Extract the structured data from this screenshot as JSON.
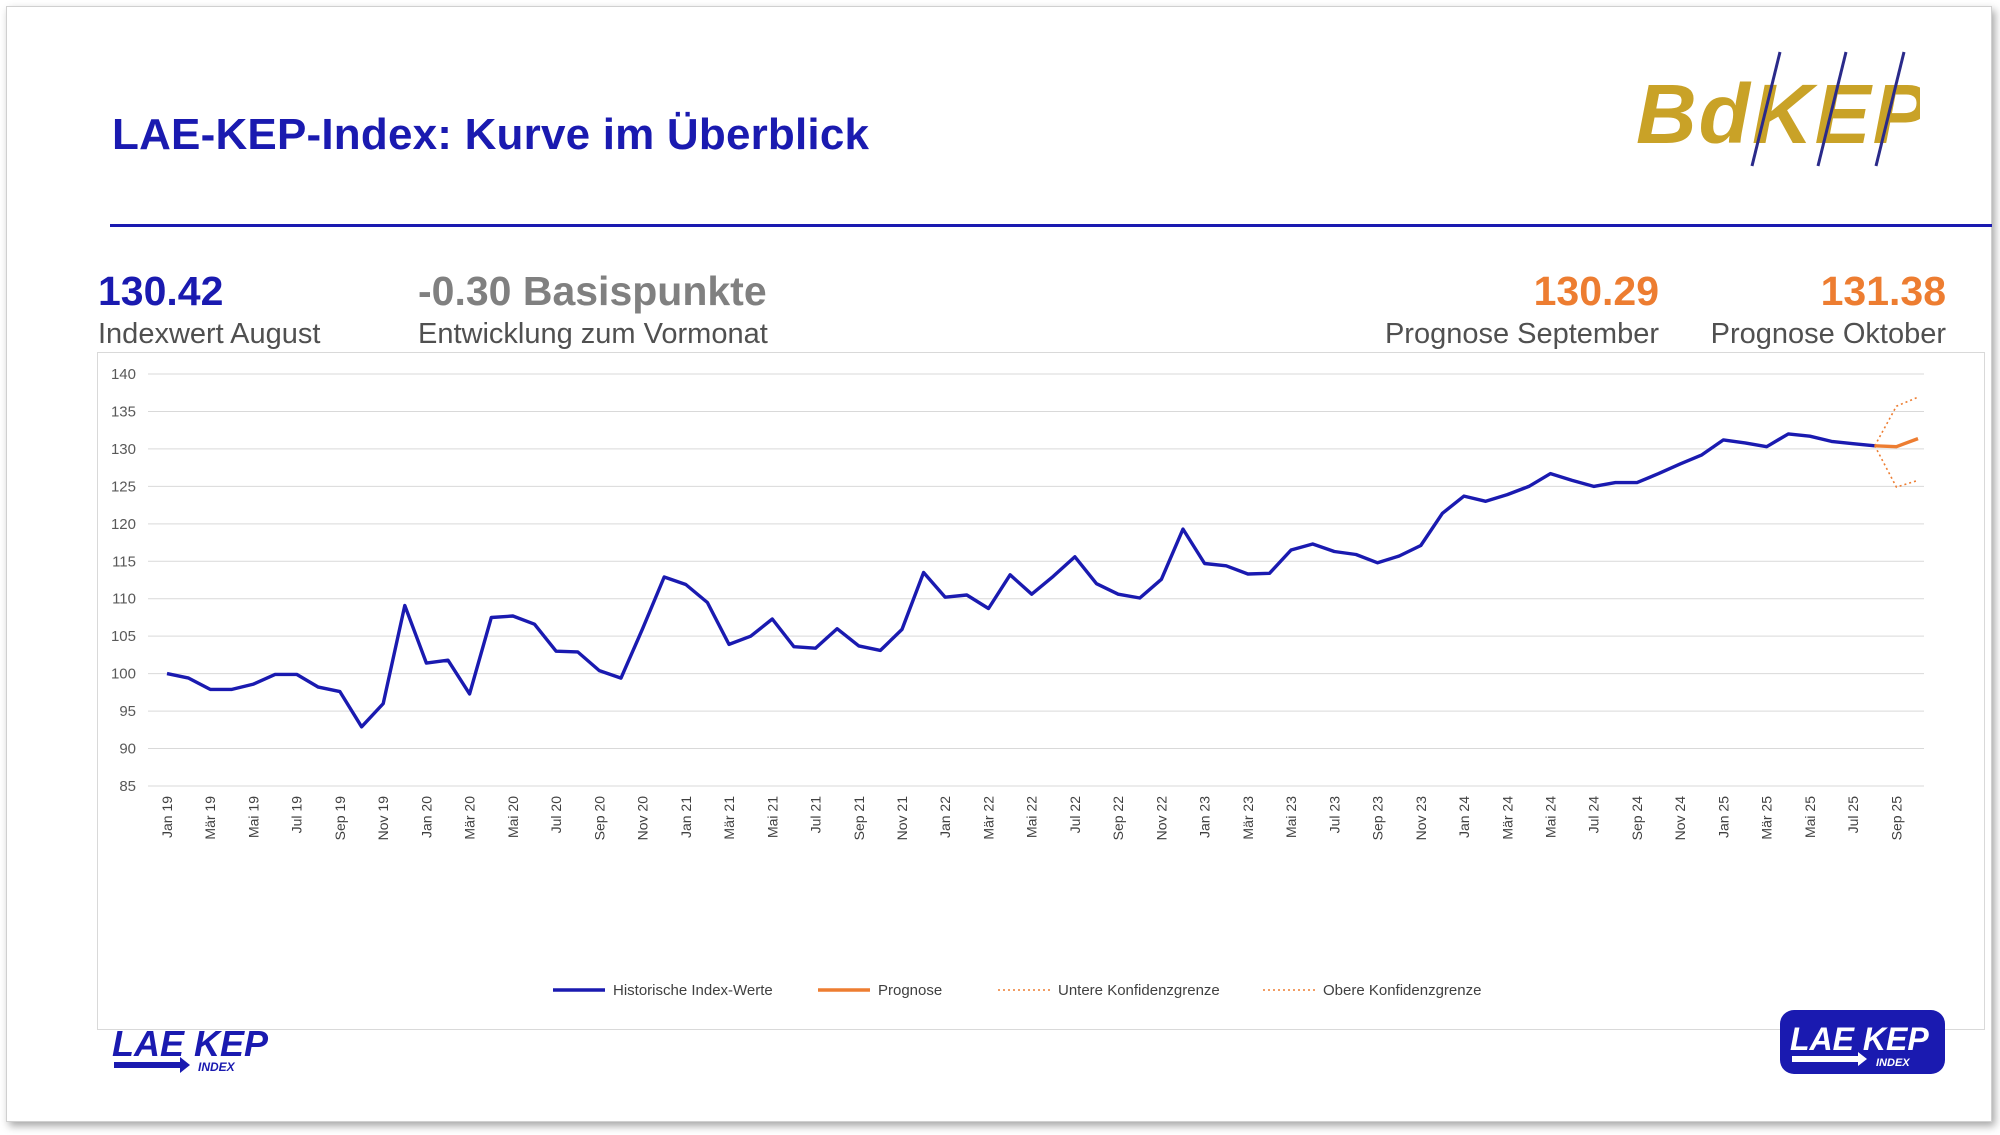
{
  "header": {
    "title": "LAE-KEP-Index: Kurve im Überblick",
    "logo_bdkep": "BdKEP",
    "logo_lae": "LAE KEP",
    "logo_lae_sub": "INDEX"
  },
  "kpis": [
    {
      "value": "130.42",
      "label": "Indexwert August",
      "color": "#1a1ab0"
    },
    {
      "value": "-0.30 Basispunkte",
      "label": "Entwicklung zum Vormonat",
      "color": "#808080"
    },
    {
      "value": "130.29",
      "label": "Prognose September",
      "color": "#ed7d31"
    },
    {
      "value": "131.38",
      "label": "Prognose Oktober",
      "color": "#ed7d31"
    }
  ],
  "colors": {
    "accent": "#1a1ab0",
    "forecast": "#ed7d31",
    "gold": "#c9a227"
  },
  "chart_data": {
    "type": "line",
    "ylim": [
      85,
      140
    ],
    "yticks": [
      85,
      90,
      95,
      100,
      105,
      110,
      115,
      120,
      125,
      130,
      135,
      140
    ],
    "grid": true,
    "legend_position": "bottom",
    "xtick_labels": [
      "Jan 19",
      "Mär 19",
      "Mai 19",
      "Jul 19",
      "Sep 19",
      "Nov 19",
      "Jan 20",
      "Mär 20",
      "Mai 20",
      "Jul 20",
      "Sep 20",
      "Nov 20",
      "Jan 21",
      "Mär 21",
      "Mai 21",
      "Jul 21",
      "Sep 21",
      "Nov 21",
      "Jan 22",
      "Mär 22",
      "Mai 22",
      "Jul 22",
      "Sep 22",
      "Nov 22",
      "Jan 23",
      "Mär 23",
      "Mai 23",
      "Jul 23",
      "Sep 23",
      "Nov 23",
      "Jan 24",
      "Mär 24",
      "Mai 24",
      "Jul 24",
      "Sep 24",
      "Nov 24",
      "Jan 25",
      "Mär 25",
      "Mai 25",
      "Jul 25",
      "Sep 25"
    ],
    "x_start": "Jan 19",
    "series": [
      {
        "name": "Historische Index-Werte",
        "color": "#1a1ab0",
        "style": "solid",
        "values": [
          100.0,
          99.4,
          97.9,
          97.9,
          98.6,
          99.9,
          99.9,
          98.2,
          97.6,
          92.9,
          96.0,
          109.1,
          101.4,
          101.8,
          97.3,
          107.5,
          107.7,
          106.6,
          103.0,
          102.9,
          100.4,
          99.4,
          106.0,
          112.9,
          111.9,
          109.5,
          103.9,
          105.0,
          107.3,
          103.6,
          103.4,
          106.0,
          103.7,
          103.1,
          105.9,
          113.5,
          110.2,
          110.5,
          108.7,
          113.2,
          110.6,
          113.0,
          115.6,
          112.0,
          110.6,
          110.1,
          112.6,
          119.3,
          114.7,
          114.4,
          113.3,
          113.4,
          116.5,
          117.3,
          116.3,
          115.9,
          114.8,
          115.7,
          117.1,
          121.4,
          123.7,
          123.0,
          123.9,
          125.0,
          126.7,
          125.8,
          125.0,
          125.5,
          125.5,
          126.7,
          128.0,
          129.2,
          131.2,
          130.8,
          130.3,
          132.0,
          131.7,
          131.0,
          130.7,
          130.42
        ],
        "start_index": 0
      },
      {
        "name": "Prognose",
        "color": "#ed7d31",
        "style": "solid",
        "values": [
          130.42,
          130.29,
          131.38
        ],
        "start_index": 79
      },
      {
        "name": "Untere Konfidenzgrenze",
        "color": "#ed7d31",
        "style": "dotted",
        "values": [
          130.42,
          124.9,
          125.8
        ],
        "start_index": 79
      },
      {
        "name": "Obere Konfidenzgrenze",
        "color": "#ed7d31",
        "style": "dotted",
        "values": [
          130.42,
          135.7,
          136.9
        ],
        "start_index": 79
      }
    ]
  }
}
